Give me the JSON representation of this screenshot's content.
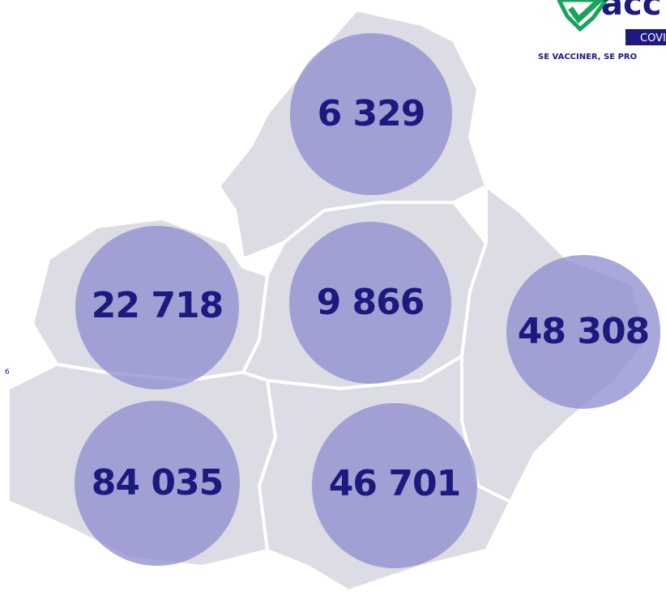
{
  "logo": {
    "word": "acc",
    "badge": "COVI",
    "tagline": "SE VACCINER, SE PRO"
  },
  "side_note": "6",
  "bubbles": [
    {
      "label": "6 329"
    },
    {
      "label": "22 718"
    },
    {
      "label": "9 866"
    },
    {
      "label": "48 308"
    },
    {
      "label": "84 035"
    },
    {
      "label": "46 701"
    }
  ]
}
